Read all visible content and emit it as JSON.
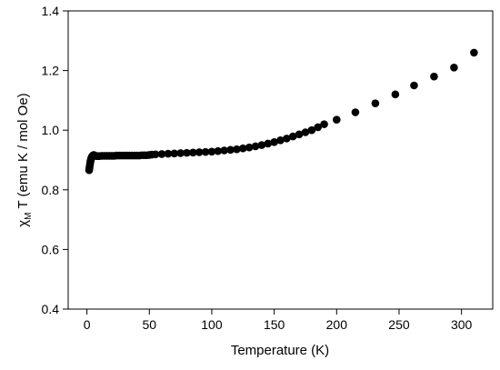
{
  "chart_data": {
    "type": "scatter",
    "title": "",
    "xlabel": "Temperature (K)",
    "ylabel": {
      "pre": "χ",
      "sub": "M",
      "post": " T (emu K / mol Oe)"
    },
    "xlim": [
      -15,
      325
    ],
    "ylim": [
      0.4,
      1.4
    ],
    "x_ticks": [
      0,
      50,
      100,
      150,
      200,
      250,
      300
    ],
    "y_ticks": [
      "0.4",
      "0.6",
      "0.8",
      "1.0",
      "1.2",
      "1.4"
    ],
    "grid": false,
    "legend": "none",
    "marker_color": "#000000",
    "series": [
      {
        "x": [
          1.8,
          2.0,
          2.2,
          2.4,
          2.6,
          2.8,
          3.0,
          3.3,
          3.6,
          4.0,
          4.5,
          5.0,
          5.5,
          6.0,
          7,
          8,
          9,
          10,
          12,
          14,
          16,
          18,
          20,
          22,
          24,
          26,
          28,
          30,
          32,
          34,
          36,
          38,
          40,
          42,
          44,
          46,
          48,
          50,
          52,
          55,
          60,
          65,
          70,
          75,
          80,
          85,
          90,
          95,
          100,
          105,
          110,
          115,
          120,
          125,
          130,
          135,
          140,
          145,
          150,
          155,
          160,
          165,
          170,
          175,
          180,
          185,
          190,
          200,
          215,
          231,
          247,
          262,
          278,
          294,
          310
        ],
        "y": [
          0.866,
          0.872,
          0.878,
          0.884,
          0.889,
          0.894,
          0.898,
          0.903,
          0.907,
          0.911,
          0.914,
          0.916,
          0.917,
          0.916,
          0.914,
          0.913,
          0.913,
          0.913,
          0.914,
          0.914,
          0.914,
          0.914,
          0.914,
          0.914,
          0.915,
          0.915,
          0.915,
          0.915,
          0.915,
          0.915,
          0.915,
          0.915,
          0.915,
          0.915,
          0.916,
          0.916,
          0.916,
          0.917,
          0.918,
          0.919,
          0.92,
          0.921,
          0.922,
          0.923,
          0.924,
          0.925,
          0.926,
          0.927,
          0.928,
          0.93,
          0.932,
          0.934,
          0.936,
          0.939,
          0.942,
          0.946,
          0.95,
          0.955,
          0.96,
          0.966,
          0.972,
          0.979,
          0.986,
          0.993,
          1.0,
          1.01,
          1.02,
          1.035,
          1.06,
          1.09,
          1.12,
          1.15,
          1.18,
          1.21,
          1.26
        ]
      }
    ]
  }
}
